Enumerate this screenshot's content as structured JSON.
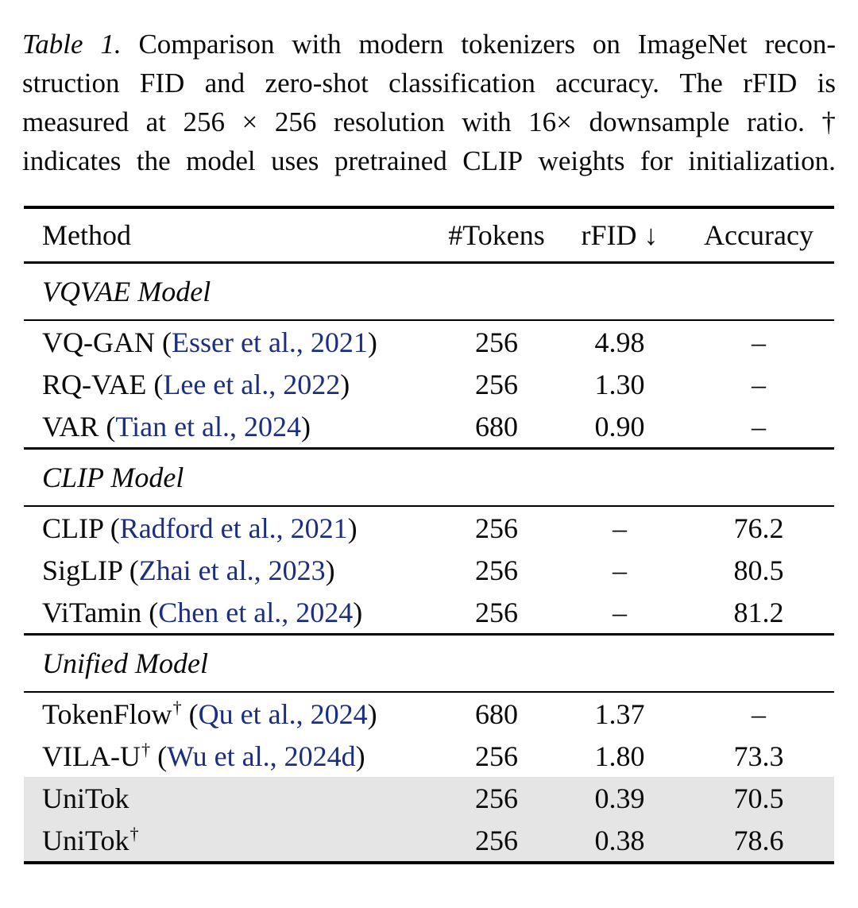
{
  "caption": {
    "lines": [
      {
        "parts": [
          {
            "text": "Table 1.",
            "italic": true
          },
          {
            "text": "Comparison with modern tokenizers on ImageNet recon-",
            "italic": false
          }
        ]
      },
      {
        "parts": [
          {
            "text": "struction FID and zero-shot classification accuracy. The rFID is",
            "italic": false
          }
        ]
      },
      {
        "parts": [
          {
            "text": "measured at 256 × 256 resolution with 16× downsample ratio. †",
            "italic": false
          }
        ]
      },
      {
        "parts": [
          {
            "text": "indicates the model uses pretrained CLIP weights for initialization.",
            "italic": false
          }
        ]
      }
    ]
  },
  "table": {
    "header": {
      "method": "Method",
      "tokens": "#Tokens",
      "rfid": "rFID ↓",
      "accuracy": "Accuracy"
    },
    "sections": [
      {
        "label": "VQVAE Model",
        "rows": [
          {
            "method": "VQ-GAN",
            "dagger": false,
            "cite": "Esser et al., 2021",
            "tokens": "256",
            "rfid": "4.98",
            "accuracy": "–",
            "highlight": false
          },
          {
            "method": "RQ-VAE",
            "dagger": false,
            "cite": "Lee et al., 2022",
            "tokens": "256",
            "rfid": "1.30",
            "accuracy": "–",
            "highlight": false
          },
          {
            "method": "VAR",
            "dagger": false,
            "cite": "Tian et al., 2024",
            "tokens": "680",
            "rfid": "0.90",
            "accuracy": "–",
            "highlight": false
          }
        ]
      },
      {
        "label": "CLIP Model",
        "rows": [
          {
            "method": "CLIP",
            "dagger": false,
            "cite": "Radford et al., 2021",
            "tokens": "256",
            "rfid": "–",
            "accuracy": "76.2",
            "highlight": false
          },
          {
            "method": "SigLIP",
            "dagger": false,
            "cite": "Zhai et al., 2023",
            "tokens": "256",
            "rfid": "–",
            "accuracy": "80.5",
            "highlight": false
          },
          {
            "method": "ViTamin",
            "dagger": false,
            "cite": "Chen et al., 2024",
            "tokens": "256",
            "rfid": "–",
            "accuracy": "81.2",
            "highlight": false
          }
        ]
      },
      {
        "label": "Unified Model",
        "rows": [
          {
            "method": "TokenFlow",
            "dagger": true,
            "cite": "Qu et al., 2024",
            "tokens": "680",
            "rfid": "1.37",
            "accuracy": "–",
            "highlight": false
          },
          {
            "method": "VILA-U",
            "dagger": true,
            "cite": "Wu et al., 2024d",
            "tokens": "256",
            "rfid": "1.80",
            "accuracy": "73.3",
            "highlight": false
          },
          {
            "method": "UniTok",
            "dagger": false,
            "cite": null,
            "tokens": "256",
            "rfid": "0.39",
            "accuracy": "70.5",
            "highlight": true
          },
          {
            "method": "UniTok",
            "dagger": true,
            "cite": null,
            "tokens": "256",
            "rfid": "0.38",
            "accuracy": "78.6",
            "highlight": true
          }
        ]
      }
    ]
  },
  "symbols": {
    "dagger": "†"
  },
  "colors": {
    "citation": "#1c2e83",
    "highlight": "#e5e5e5",
    "rule": "#000000"
  }
}
